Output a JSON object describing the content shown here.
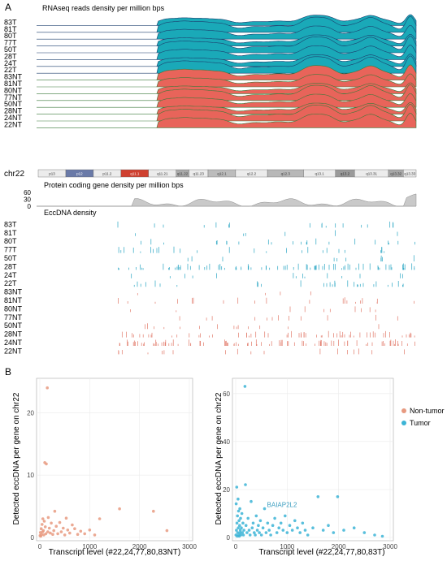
{
  "panel_a": {
    "label": "A",
    "rnaseq_title": "RNAseq reads density per million bps",
    "samples": [
      "83T",
      "81T",
      "80T",
      "77T",
      "50T",
      "28T",
      "24T",
      "22T",
      "83NT",
      "81NT",
      "80NT",
      "77NT",
      "50NT",
      "28NT",
      "24NT",
      "22NT"
    ],
    "chromosome": "chr22",
    "bands": [
      "p13",
      "p12",
      "p11.2",
      "q11.1",
      "q11.21",
      "q11.22",
      "q11.23",
      "q12.1",
      "q12.2",
      "q12.3",
      "q13.1",
      "q13.2",
      "q13.31",
      "q13.32",
      "q13.33"
    ],
    "protein_title": "Protein coding gene density per million bps",
    "protein_yticks": [
      "60",
      "30",
      "0"
    ],
    "eccdna_title": "EccDNA density",
    "colors": {
      "tumor_fill": "#1aa9b8",
      "nontumor_fill": "#e8645a",
      "tumor_line": "#1d3f6e",
      "nontumor_line": "#3a7a3a",
      "gray_fill": "#c9c9c9"
    }
  },
  "panel_b": {
    "label": "B",
    "ylabel": "Detected eccDNA per gene on chr22",
    "legend": [
      {
        "label": "Non-tumor",
        "color": "#e79a80"
      },
      {
        "label": "Tumor",
        "color": "#3cb4d6"
      }
    ],
    "plots": [
      {
        "xlabel": "Transcript level (#22,24,77,80,83NT)",
        "annotation": ""
      },
      {
        "xlabel": "Transcript level (#22,24,77,80,83T)",
        "annotation": "BAIAP2L2"
      }
    ]
  },
  "chart_data": [
    {
      "type": "scatter",
      "x_range": [
        0,
        3000
      ],
      "y_range": [
        0,
        25
      ],
      "xticks": [
        "0",
        "1000",
        "2000",
        "3000"
      ],
      "yticks": [
        "0",
        "10",
        "20"
      ],
      "points": [
        [
          5,
          0.3
        ],
        [
          12,
          0.8
        ],
        [
          20,
          0.2
        ],
        [
          28,
          1.4
        ],
        [
          35,
          0.5
        ],
        [
          45,
          2.1
        ],
        [
          55,
          0.9
        ],
        [
          60,
          3.0
        ],
        [
          70,
          1.1
        ],
        [
          80,
          0.4
        ],
        [
          90,
          2.6
        ],
        [
          100,
          12.0
        ],
        [
          110,
          1.7
        ],
        [
          120,
          0.6
        ],
        [
          130,
          11.8
        ],
        [
          150,
          24.0
        ],
        [
          160,
          0.9
        ],
        [
          170,
          3.2
        ],
        [
          190,
          1.5
        ],
        [
          210,
          0.7
        ],
        [
          230,
          2.3
        ],
        [
          260,
          0.5
        ],
        [
          280,
          1.1
        ],
        [
          300,
          4.2
        ],
        [
          330,
          1.8
        ],
        [
          360,
          0.6
        ],
        [
          400,
          2.4
        ],
        [
          430,
          0.9
        ],
        [
          470,
          1.5
        ],
        [
          500,
          0.4
        ],
        [
          530,
          3.1
        ],
        [
          560,
          1.2
        ],
        [
          600,
          0.7
        ],
        [
          650,
          2.0
        ],
        [
          700,
          1.4
        ],
        [
          760,
          0.5
        ],
        [
          820,
          1.0
        ],
        [
          900,
          0.6
        ],
        [
          1000,
          1.2
        ],
        [
          1100,
          0.4
        ],
        [
          1200,
          3.0
        ],
        [
          1600,
          4.6
        ],
        [
          2280,
          4.2
        ],
        [
          2550,
          1.1
        ]
      ]
    },
    {
      "type": "scatter",
      "x_range": [
        0,
        3000
      ],
      "y_range": [
        0,
        65
      ],
      "xticks": [
        "0",
        "1000",
        "2000",
        "3000"
      ],
      "yticks": [
        "0",
        "20",
        "40",
        "60"
      ],
      "points": [
        [
          5,
          1
        ],
        [
          10,
          14
        ],
        [
          15,
          3
        ],
        [
          20,
          21
        ],
        [
          25,
          6
        ],
        [
          30,
          0.5
        ],
        [
          35,
          9
        ],
        [
          40,
          2
        ],
        [
          45,
          16
        ],
        [
          50,
          4
        ],
        [
          55,
          11
        ],
        [
          60,
          1
        ],
        [
          65,
          7
        ],
        [
          70,
          0.5
        ],
        [
          75,
          5
        ],
        [
          80,
          12
        ],
        [
          85,
          2
        ],
        [
          90,
          3
        ],
        [
          95,
          8
        ],
        [
          100,
          1
        ],
        [
          110,
          4
        ],
        [
          120,
          10
        ],
        [
          130,
          2
        ],
        [
          140,
          6
        ],
        [
          150,
          1
        ],
        [
          160,
          3
        ],
        [
          180,
          63
        ],
        [
          190,
          22
        ],
        [
          200,
          5
        ],
        [
          220,
          2
        ],
        [
          240,
          8
        ],
        [
          260,
          3
        ],
        [
          280,
          1
        ],
        [
          300,
          15
        ],
        [
          320,
          4
        ],
        [
          340,
          6
        ],
        [
          360,
          2
        ],
        [
          380,
          1
        ],
        [
          400,
          9
        ],
        [
          420,
          3
        ],
        [
          440,
          5
        ],
        [
          460,
          2
        ],
        [
          480,
          7
        ],
        [
          500,
          1
        ],
        [
          530,
          4
        ],
        [
          560,
          12
        ],
        [
          590,
          2
        ],
        [
          620,
          6
        ],
        [
          650,
          3
        ],
        [
          680,
          1
        ],
        [
          720,
          5
        ],
        [
          760,
          8
        ],
        [
          800,
          2
        ],
        [
          840,
          4
        ],
        [
          880,
          6
        ],
        [
          920,
          3
        ],
        [
          960,
          9
        ],
        [
          1000,
          2
        ],
        [
          1050,
          5
        ],
        [
          1100,
          3
        ],
        [
          1150,
          7
        ],
        [
          1200,
          4
        ],
        [
          1250,
          2
        ],
        [
          1300,
          6
        ],
        [
          1350,
          3
        ],
        [
          1400,
          1
        ],
        [
          1500,
          4
        ],
        [
          1600,
          17
        ],
        [
          1700,
          3
        ],
        [
          1800,
          5
        ],
        [
          1900,
          2
        ],
        [
          1980,
          17
        ],
        [
          2100,
          3
        ],
        [
          2300,
          4
        ],
        [
          2500,
          2
        ],
        [
          2700,
          1
        ],
        [
          2850,
          0.5
        ]
      ]
    }
  ]
}
